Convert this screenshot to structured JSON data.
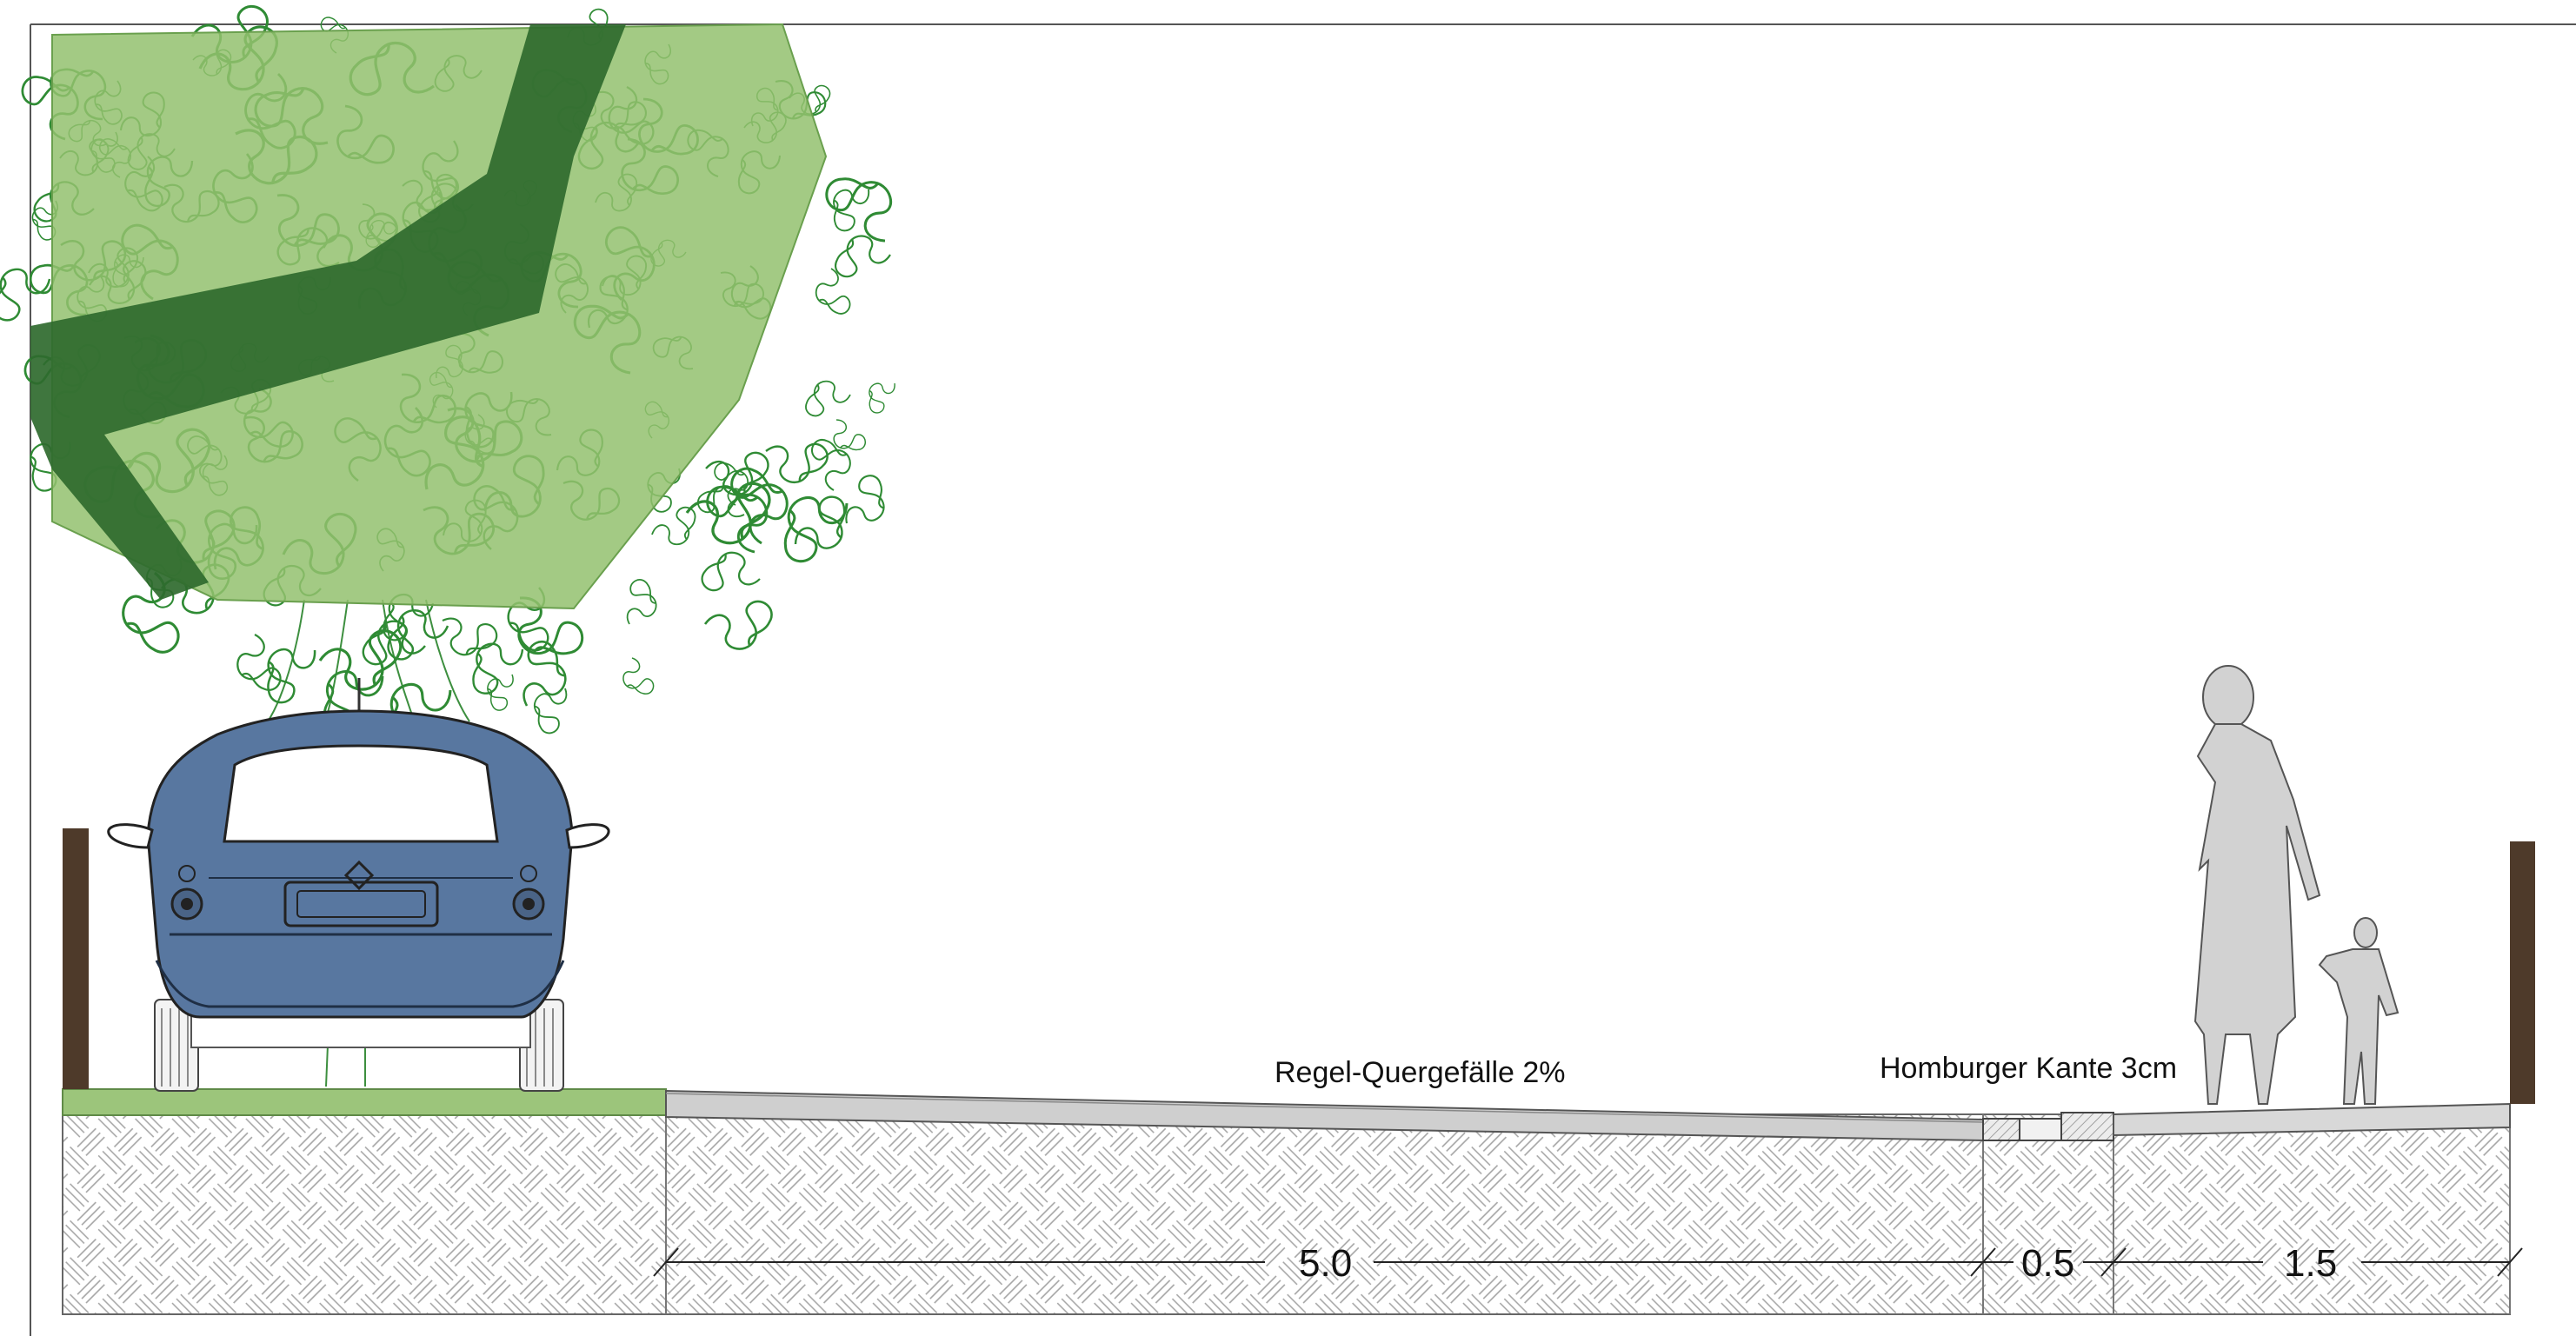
{
  "annotations": {
    "cross_slope": "Regel-Quergefälle 2%",
    "curb": "Homburger Kante 3cm"
  },
  "dimensions": {
    "road": "5.0",
    "curb": "0.5",
    "sidewalk": "1.5"
  },
  "colors": {
    "grass": "#9cc57b",
    "tree_trunk": "#2f6a2e",
    "canopy": "#93c16f",
    "foliage_line": "#2e8b33",
    "car_body": "#5877a0",
    "post": "#4e3a2a",
    "pavement": "#cfcfcf",
    "person": "#d2d2d2",
    "ground_hatch": "#9a9a9a"
  },
  "icons": [
    "tree-icon",
    "car-icon",
    "pedestrian-adult-icon",
    "pedestrian-child-icon",
    "fence-post-icon"
  ]
}
